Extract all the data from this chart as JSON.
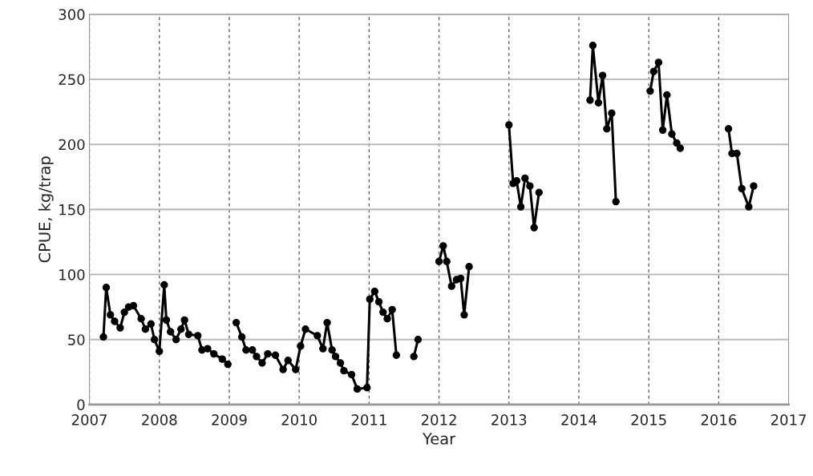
{
  "chart_data": {
    "type": "line",
    "xlabel": "Year",
    "ylabel": "CPUE, kg/trap",
    "xlim": [
      2007,
      2017
    ],
    "xticks": [
      2007,
      2008,
      2009,
      2010,
      2011,
      2012,
      2013,
      2014,
      2015,
      2016,
      2017
    ],
    "ylim": [
      0,
      300
    ],
    "yticks": [
      0,
      50,
      100,
      150,
      200,
      250,
      300
    ],
    "grid": true,
    "marker": "circle",
    "line_style": "solid",
    "series": [
      {
        "color": "#000000",
        "x": [
          2007.2,
          2007.24,
          2007.3,
          2007.36,
          2007.44,
          2007.5,
          2007.56,
          2007.63,
          2007.74,
          2007.8,
          2007.88,
          2007.93,
          2008.0,
          2008.07,
          2008.1,
          2008.16,
          2008.24,
          2008.31,
          2008.36,
          2008.42,
          2008.55,
          2008.61,
          2008.69,
          2008.78,
          2008.9,
          2008.98
        ],
        "values": [
          52,
          90,
          69,
          64,
          59,
          71,
          75,
          76,
          66,
          58,
          62,
          50,
          41,
          92,
          65,
          56,
          50,
          58,
          65,
          54,
          53,
          42,
          43,
          39,
          35,
          31
        ]
      },
      {
        "color": "#000000",
        "x": [
          2009.1,
          2009.18,
          2009.24,
          2009.33,
          2009.39,
          2009.47,
          2009.55,
          2009.66,
          2009.77,
          2009.84,
          2009.95,
          2010.02,
          2010.09,
          2010.26,
          2010.34,
          2010.4,
          2010.47,
          2010.52,
          2010.59,
          2010.64,
          2010.75,
          2010.83,
          2010.97,
          2011.01,
          2011.08,
          2011.14,
          2011.2,
          2011.26,
          2011.33,
          2011.39
        ],
        "values": [
          63,
          52,
          42,
          42,
          37,
          32,
          39,
          38,
          27,
          34,
          27,
          45,
          58,
          53,
          43,
          63,
          42,
          37,
          32,
          26,
          23,
          12,
          13,
          81,
          87,
          79,
          71,
          66,
          73,
          38
        ]
      },
      {
        "color": "#000000",
        "x": [
          2011.64,
          2011.7
        ],
        "values": [
          37,
          50
        ]
      },
      {
        "color": "#000000",
        "x": [
          2012.0,
          2012.06,
          2012.11,
          2012.18,
          2012.25,
          2012.31,
          2012.36,
          2012.43
        ],
        "values": [
          110,
          122,
          110,
          91,
          96,
          97,
          69,
          106
        ]
      },
      {
        "color": "#000000",
        "x": [
          2013.0,
          2013.06,
          2013.11,
          2013.17,
          2013.23,
          2013.3,
          2013.36,
          2013.43
        ],
        "values": [
          215,
          170,
          172,
          152,
          174,
          168,
          136,
          163
        ]
      },
      {
        "color": "#000000",
        "x": [
          2014.16,
          2014.2,
          2014.28,
          2014.34,
          2014.4,
          2014.47,
          2014.53
        ],
        "values": [
          234,
          276,
          232,
          253,
          212,
          224,
          156
        ]
      },
      {
        "color": "#000000",
        "x": [
          2015.02,
          2015.07,
          2015.14,
          2015.2,
          2015.26,
          2015.33,
          2015.4,
          2015.45
        ],
        "values": [
          241,
          256,
          263,
          211,
          238,
          208,
          201,
          197
        ]
      },
      {
        "color": "#000000",
        "x": [
          2016.14,
          2016.19,
          2016.26,
          2016.33,
          2016.43,
          2016.5
        ],
        "values": [
          212,
          193,
          193,
          166,
          152,
          168
        ]
      }
    ]
  }
}
